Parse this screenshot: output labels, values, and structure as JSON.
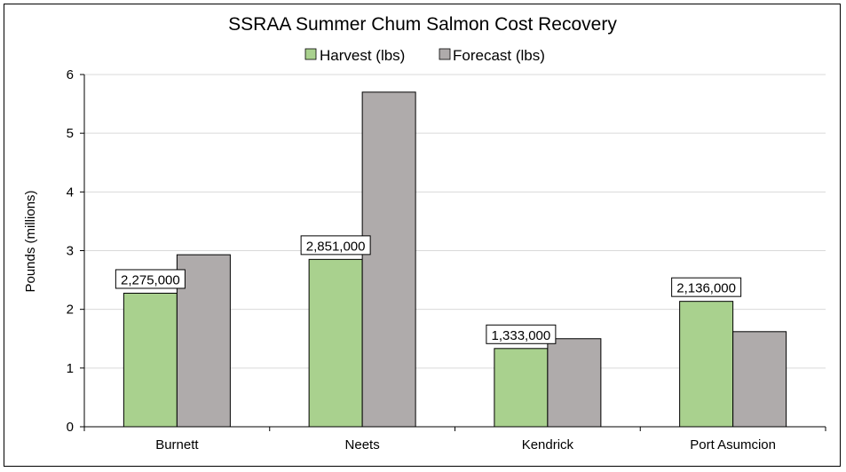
{
  "chart_data": {
    "type": "bar",
    "title": "SSRAA Summer Chum Salmon Cost Recovery",
    "xlabel": "",
    "ylabel": "Pounds (millions)",
    "categories": [
      "Burnett",
      "Neets",
      "Kendrick",
      "Port Asumcion"
    ],
    "series": [
      {
        "name": "Harvest (lbs)",
        "values": [
          2.275,
          2.851,
          1.333,
          2.136
        ],
        "color": "#a9d18e"
      },
      {
        "name": "Forecast (lbs)",
        "values": [
          2.93,
          5.7,
          1.5,
          1.62
        ],
        "color": "#afabab"
      }
    ],
    "data_labels": [
      "2,275,000",
      "2,851,000",
      "1,333,000",
      "2,136,000"
    ],
    "ylim": [
      0,
      6
    ],
    "yticks": [
      "0",
      "1",
      "2",
      "3",
      "4",
      "5",
      "6"
    ],
    "grid": true,
    "legend_position": "top"
  }
}
